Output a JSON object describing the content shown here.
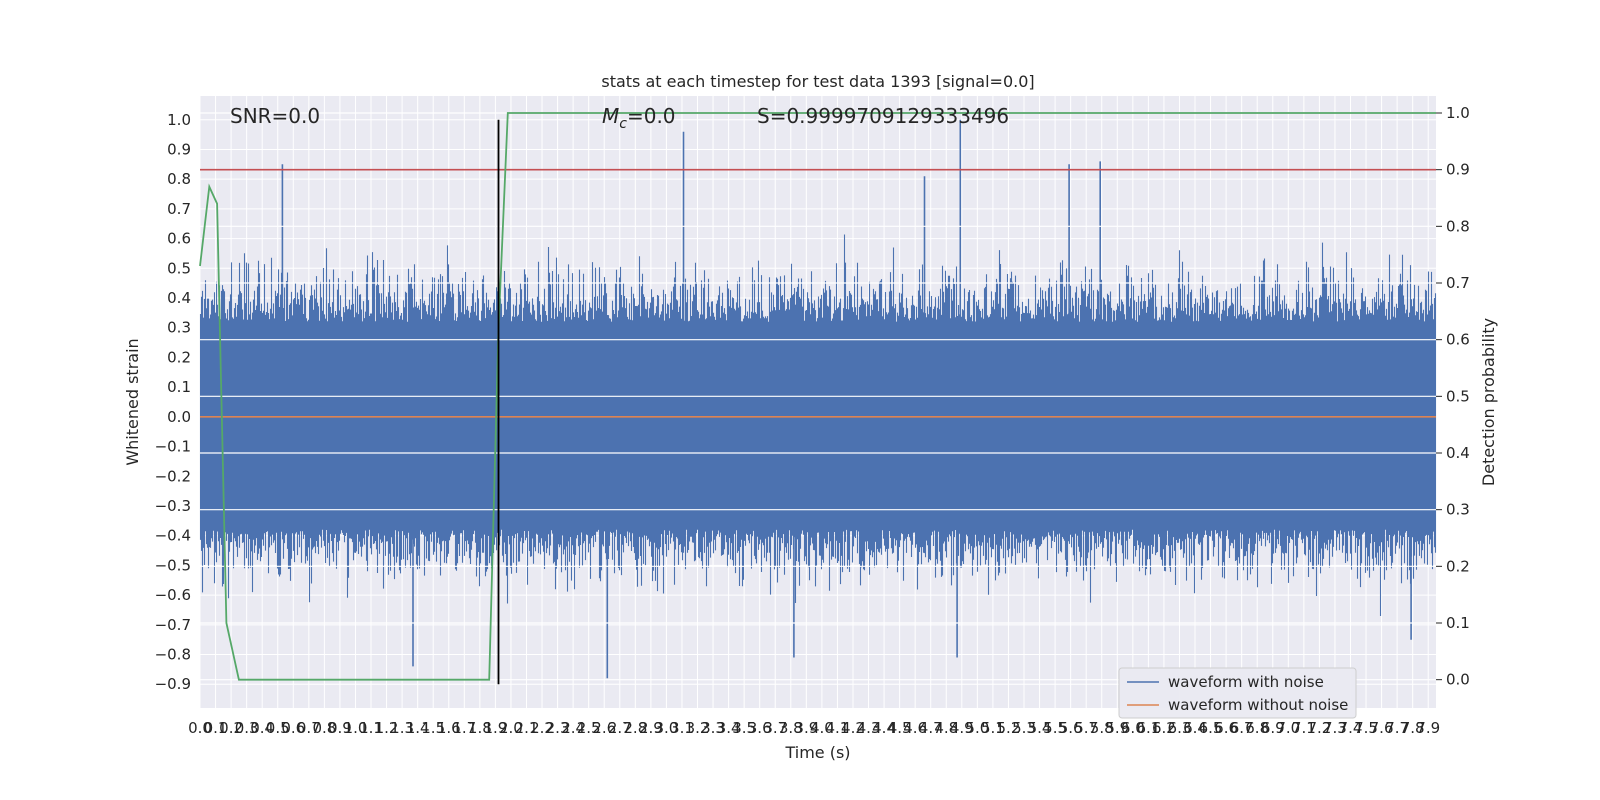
{
  "chart_data": {
    "type": "line",
    "title": "stats at each timestep for test data 1393 [signal=0.0]",
    "xlabel": "Time (s)",
    "ylabel": "Whitened strain",
    "y2label": "Detection probability",
    "xlim": [
      0.0,
      7.95
    ],
    "ylim": [
      -0.98,
      1.08
    ],
    "y2lim": [
      -0.05,
      1.03
    ],
    "x_ticks": [
      "0.0",
      "0.1",
      "0.2",
      "0.3",
      "0.4",
      "0.5",
      "0.6",
      "0.7",
      "0.8",
      "0.9",
      "1.0",
      "1.1",
      "1.2",
      "1.3",
      "1.4",
      "1.5",
      "1.6",
      "1.7",
      "1.8",
      "1.9",
      "2.0",
      "2.1",
      "2.2",
      "2.3",
      "2.4",
      "2.5",
      "2.6",
      "2.7",
      "2.8",
      "2.9",
      "3.0",
      "3.1",
      "3.2",
      "3.3",
      "3.4",
      "3.5",
      "3.6",
      "3.7",
      "3.8",
      "3.9",
      "4.0",
      "4.1",
      "4.2",
      "4.3",
      "4.4",
      "4.5",
      "4.6",
      "4.7",
      "4.8",
      "4.9",
      "5.0",
      "5.1",
      "5.2",
      "5.3",
      "5.4",
      "5.5",
      "5.6",
      "5.7",
      "5.8",
      "5.9",
      "6.0",
      "6.1",
      "6.2",
      "6.3",
      "6.4",
      "6.5",
      "6.6",
      "6.7",
      "6.8",
      "6.9",
      "7.0",
      "7.1",
      "7.2",
      "7.3",
      "7.4",
      "7.5",
      "7.6",
      "7.7",
      "7.8",
      "7.9"
    ],
    "y_ticks": [
      "−0.9",
      "−0.8",
      "−0.7",
      "−0.6",
      "−0.5",
      "−0.4",
      "−0.3",
      "−0.2",
      "−0.1",
      "0.0",
      "0.1",
      "0.2",
      "0.3",
      "0.4",
      "0.5",
      "0.6",
      "0.7",
      "0.8",
      "0.9",
      "1.0"
    ],
    "y2_ticks": [
      "0.0",
      "0.1",
      "0.2",
      "0.3",
      "0.4",
      "0.5",
      "0.6",
      "0.7",
      "0.8",
      "0.9",
      "1.0"
    ],
    "annotations": {
      "snr": "SNR=0.0",
      "mc": "=0.0",
      "mc_symbol": "M",
      "mc_sub": "c",
      "s": "S=0.9999709129333496"
    },
    "series": [
      {
        "name": "waveform with noise",
        "color": "#4c72b0",
        "axis": "left",
        "kind": "noise",
        "sample_rate_hz": 2048,
        "peaks_positive": [
          {
            "x": 0.53,
            "y": 0.85
          },
          {
            "x": 3.11,
            "y": 0.96
          },
          {
            "x": 4.89,
            "y": 1.0
          },
          {
            "x": 5.59,
            "y": 0.85
          },
          {
            "x": 5.79,
            "y": 0.86
          },
          {
            "x": 4.66,
            "y": 0.81
          }
        ],
        "peaks_negative": [
          {
            "x": 1.37,
            "y": -0.84
          },
          {
            "x": 2.62,
            "y": -0.88
          },
          {
            "x": 3.82,
            "y": -0.81
          },
          {
            "x": 4.87,
            "y": -0.81
          },
          {
            "x": 7.79,
            "y": -0.75
          }
        ]
      },
      {
        "name": "waveform without noise",
        "color": "#dd8452",
        "axis": "left",
        "x": [
          0.0,
          7.95
        ],
        "y": [
          0.0,
          0.0
        ]
      },
      {
        "color": "#55a868",
        "axis": "right",
        "x": [
          0.0,
          0.06,
          0.11,
          0.17,
          0.25,
          0.5,
          1.0,
          1.5,
          1.8,
          1.86,
          1.92,
          1.98,
          2.5,
          7.95
        ],
        "y": [
          0.73,
          0.87,
          0.84,
          0.1,
          0.0,
          0.0,
          0.0,
          0.0,
          0.0,
          0.0,
          0.62,
          1.0,
          1.0,
          1.0
        ]
      }
    ],
    "threshold": {
      "color": "#c44e52",
      "axis": "right",
      "value": 0.9
    },
    "marker_line": {
      "color": "#000000",
      "x": 1.92,
      "y_range": [
        -0.9,
        1.0
      ]
    },
    "grid": true,
    "background": "#eaeaf2",
    "legend_placement": "lower-right"
  }
}
